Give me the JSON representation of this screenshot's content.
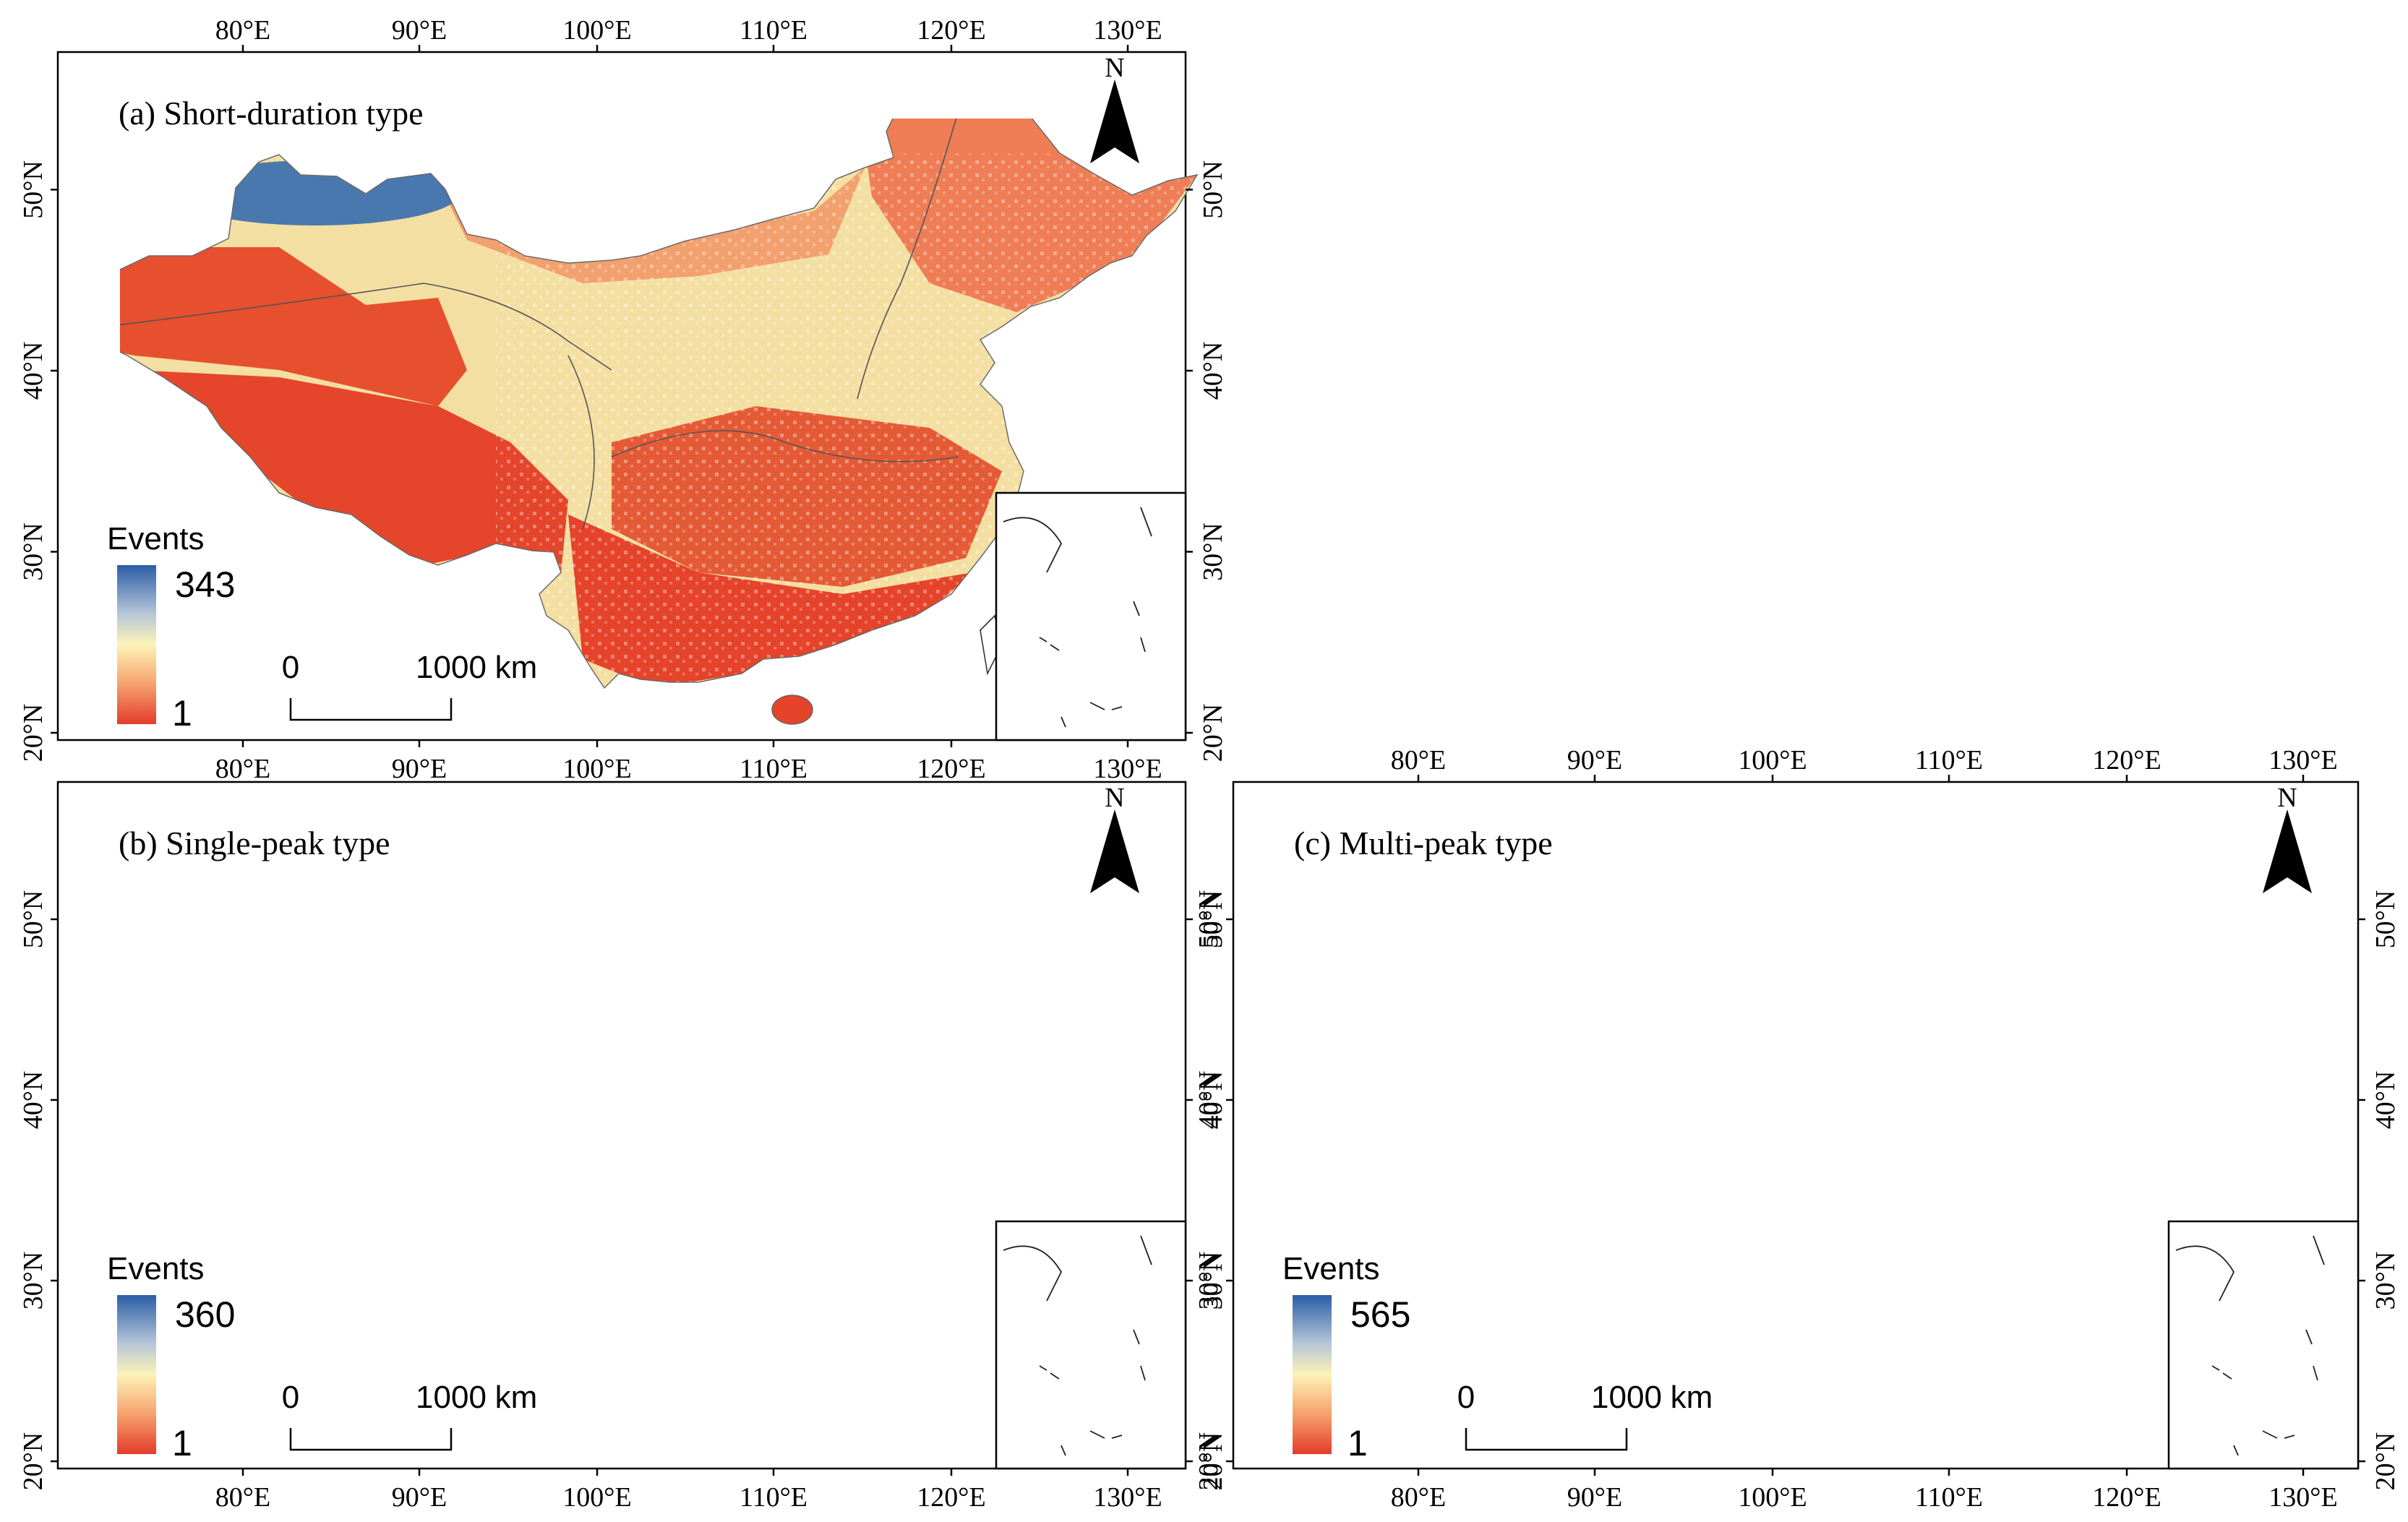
{
  "panels": [
    {
      "id": "a",
      "title": "(a) Short-duration type",
      "legend": {
        "title": "Events",
        "max": "343",
        "min": "1"
      },
      "scalebar": {
        "start": "0",
        "end": "1000",
        "unit": "km"
      },
      "north": "N",
      "lon_top": [
        "80°E",
        "90°E",
        "100°E",
        "110°E",
        "120°E",
        "130°E"
      ],
      "lon_bottom": [
        "80°E",
        "90°E",
        "100°E",
        "110°E",
        "120°E",
        "130°E"
      ],
      "lat_left": [
        "50°N",
        "40°N",
        "30°N",
        "20°N"
      ],
      "lat_right": [
        "50°N",
        "40°N",
        "30°N",
        "20°N"
      ],
      "palette": {
        "west": "#e6502e",
        "north_dry": "#f2a06e",
        "northeast": "#ef7d55",
        "south": "#e5432a",
        "basin": "#e45a35",
        "center": "#f4dfa2",
        "tibet": "#e4452b"
      }
    },
    {
      "id": "b",
      "title": "(b) Single-peak type",
      "legend": {
        "title": "Events",
        "max": "360",
        "min": "1"
      },
      "scalebar": {
        "start": "0",
        "end": "1000",
        "unit": "km"
      },
      "north": "N",
      "lon_top": [],
      "lon_bottom": [
        "80°E",
        "90°E",
        "100°E",
        "110°E",
        "120°E",
        "130°E"
      ],
      "lat_left": [
        "50°N",
        "40°N",
        "30°N",
        "20°N"
      ],
      "lat_right": [
        "50°N",
        "40°N",
        "30°N",
        "20°N"
      ],
      "palette": {
        "west": "#e6573a",
        "north_dry": "#e85a3a",
        "northeast": "#bcd0d6",
        "south": "#f0b27c",
        "basin": "#ed8153",
        "center": "#d8dcc4",
        "tibet": "#e5502f"
      }
    },
    {
      "id": "c",
      "title": "(c) Multi-peak type",
      "legend": {
        "title": "Events",
        "max": "565",
        "min": "1"
      },
      "scalebar": {
        "start": "0",
        "end": "1000",
        "unit": "km"
      },
      "north": "N",
      "lon_top": [
        "80°E",
        "90°E",
        "100°E",
        "110°E",
        "120°E",
        "130°E"
      ],
      "lon_bottom": [
        "80°E",
        "90°E",
        "100°E",
        "110°E",
        "120°E",
        "130°E"
      ],
      "lat_left": [
        "50°N",
        "40°N",
        "30°N",
        "20°N"
      ],
      "lat_right": [
        "50°N",
        "40°N",
        "30°N",
        "20°N"
      ],
      "palette": {
        "west": "#e24a2d",
        "north_dry": "#e44a2c",
        "northeast": "#f2a37a",
        "south": "#5b8fc0",
        "basin": "#3f74b2",
        "center": "#d9dfc8",
        "tibet": "#f6c58e"
      }
    }
  ],
  "colorbar": {
    "top": "#2b5da6",
    "upper": "#b3c5d8",
    "middle": "#fdf3b8",
    "lower": "#f6a16c",
    "bottom": "#e23c2a"
  },
  "regions": {
    "northwest_blob": {
      "a": "#3a6fb0",
      "b": "#4b7fb9",
      "c": "#e5502f"
    }
  }
}
